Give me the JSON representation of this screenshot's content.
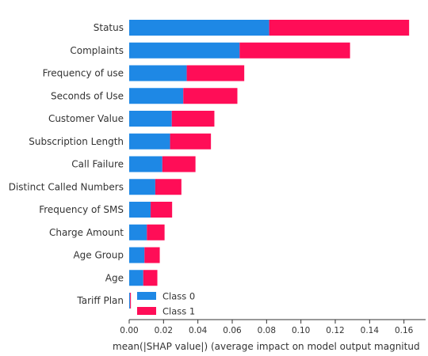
{
  "chart_data": {
    "type": "bar",
    "orientation": "horizontal",
    "stacked": true,
    "title": "",
    "xlabel": "mean(|SHAP value|) (average impact on model output magnitud",
    "ylabel": "",
    "xlim": [
      0,
      0.172
    ],
    "xticks": [
      "0.00",
      "0.02",
      "0.04",
      "0.06",
      "0.08",
      "0.10",
      "0.12",
      "0.14",
      "0.16"
    ],
    "categories": [
      "Status",
      "Complaints",
      "Frequency of use",
      "Seconds of Use",
      "Customer Value",
      "Subscription Length",
      "Call Failure",
      "Distinct Called Numbers",
      "Frequency of SMS",
      "Charge Amount",
      "Age Group",
      "Age",
      "Tariff Plan"
    ],
    "series": [
      {
        "name": "Class 0",
        "color": "#1e88e5",
        "values": [
          0.0815,
          0.0643,
          0.0335,
          0.0315,
          0.0248,
          0.0238,
          0.0193,
          0.0152,
          0.0125,
          0.0103,
          0.0089,
          0.0082,
          0.0005
        ]
      },
      {
        "name": "Class 1",
        "color": "#ff0d57",
        "values": [
          0.0815,
          0.0643,
          0.0335,
          0.0315,
          0.0248,
          0.0238,
          0.0193,
          0.0152,
          0.0125,
          0.0103,
          0.0089,
          0.0082,
          0.0005
        ]
      }
    ],
    "grid": false,
    "legend_position": "bottom-left"
  }
}
